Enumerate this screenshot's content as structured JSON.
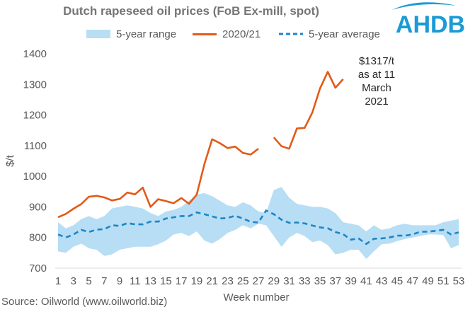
{
  "title": "Dutch rapeseed oil prices (FoB Ex-mill, spot)",
  "brand": "AHDB",
  "source": "Source: Oilworld (www.oilworld.biz)",
  "chart_data": {
    "type": "line",
    "title": "Dutch rapeseed oil prices (FoB Ex-mill, spot)",
    "xlabel": "Week number",
    "ylabel": "$/t",
    "ylim": [
      700,
      1400
    ],
    "yticks": [
      700,
      800,
      900,
      1000,
      1100,
      1200,
      1300,
      1400
    ],
    "xlim": [
      1,
      53
    ],
    "xticks": [
      1,
      3,
      5,
      7,
      9,
      11,
      13,
      15,
      17,
      19,
      21,
      23,
      25,
      27,
      29,
      31,
      33,
      35,
      37,
      39,
      41,
      43,
      45,
      47,
      49,
      51,
      53
    ],
    "grid": false,
    "legend": "top",
    "annotation": "$1317/t\nas at 11\nMarch\n2021",
    "series": [
      {
        "name": "5-year range",
        "kind": "range",
        "color": "#b7def4",
        "x": [
          1,
          2,
          3,
          4,
          5,
          6,
          7,
          8,
          9,
          10,
          11,
          12,
          13,
          14,
          15,
          16,
          17,
          18,
          19,
          20,
          21,
          22,
          23,
          24,
          25,
          26,
          27,
          28,
          29,
          30,
          31,
          32,
          33,
          34,
          35,
          36,
          37,
          38,
          39,
          40,
          41,
          42,
          43,
          44,
          45,
          46,
          47,
          48,
          49,
          50,
          51,
          52,
          53
        ],
        "low": [
          755,
          750,
          770,
          780,
          765,
          760,
          740,
          745,
          760,
          765,
          770,
          770,
          770,
          778,
          790,
          810,
          815,
          805,
          820,
          790,
          780,
          795,
          815,
          825,
          840,
          830,
          845,
          840,
          805,
          770,
          800,
          815,
          805,
          785,
          790,
          775,
          745,
          750,
          760,
          760,
          730,
          755,
          778,
          780,
          788,
          795,
          800,
          805,
          810,
          810,
          808,
          765,
          775
        ],
        "high": [
          850,
          830,
          840,
          860,
          870,
          860,
          870,
          895,
          900,
          905,
          900,
          895,
          880,
          870,
          885,
          890,
          900,
          920,
          940,
          945,
          935,
          920,
          905,
          900,
          915,
          905,
          885,
          880,
          955,
          965,
          930,
          910,
          905,
          900,
          900,
          895,
          880,
          850,
          845,
          840,
          820,
          840,
          825,
          830,
          840,
          845,
          840,
          840,
          840,
          840,
          850,
          855,
          860
        ]
      },
      {
        "name": "2020/21",
        "kind": "line",
        "color": "#e35a16",
        "x": [
          1,
          2,
          3,
          4,
          5,
          6,
          7,
          8,
          9,
          10,
          11,
          12,
          13,
          14,
          15,
          16,
          17,
          18,
          19,
          20,
          21,
          22,
          23,
          24,
          25,
          26,
          27,
          28,
          29,
          30,
          31,
          32,
          33,
          34,
          35,
          36,
          37,
          38
        ],
        "y": [
          866,
          877,
          894,
          909,
          933,
          936,
          931,
          921,
          926,
          947,
          941,
          963,
          900,
          925,
          919,
          912,
          929,
          910,
          940,
          1040,
          1121,
          1108,
          1092,
          1097,
          1076,
          1071,
          1090,
          null,
          1127,
          1098,
          1090,
          1156,
          1158,
          1208,
          1287,
          1341,
          1289,
          1317
        ]
      },
      {
        "name": "5-year average",
        "kind": "dashed",
        "color": "#1c86c8",
        "x": [
          1,
          2,
          3,
          4,
          5,
          6,
          7,
          8,
          9,
          10,
          11,
          12,
          13,
          14,
          15,
          16,
          17,
          18,
          19,
          20,
          21,
          22,
          23,
          24,
          25,
          26,
          27,
          28,
          29,
          30,
          31,
          32,
          33,
          34,
          35,
          36,
          37,
          38,
          39,
          40,
          41,
          42,
          43,
          44,
          45,
          46,
          47,
          48,
          49,
          50,
          51,
          52,
          53
        ],
        "y": [
          810,
          800,
          810,
          825,
          818,
          826,
          827,
          840,
          838,
          847,
          843,
          843,
          852,
          852,
          862,
          866,
          870,
          870,
          882,
          876,
          869,
          862,
          864,
          871,
          862,
          851,
          849,
          888,
          876,
          858,
          848,
          849,
          846,
          839,
          833,
          830,
          818,
          811,
          793,
          797,
          779,
          796,
          797,
          800,
          806,
          806,
          810,
          819,
          819,
          822,
          825,
          810,
          817
        ]
      }
    ]
  }
}
